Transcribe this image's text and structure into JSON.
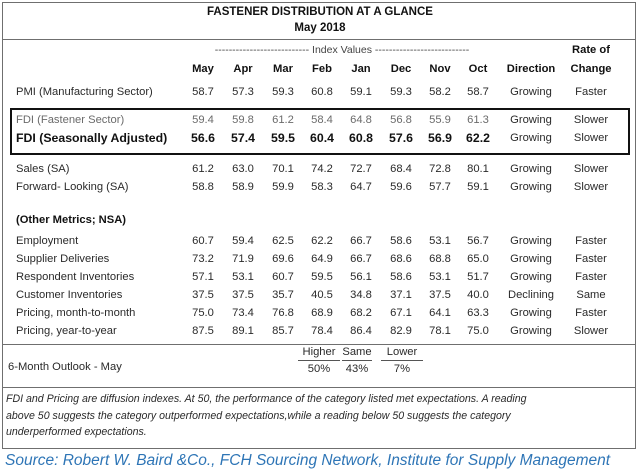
{
  "title": "FASTENER DISTRIBUTION AT A GLANCE",
  "subtitle": "May 2018",
  "index_values_label": "--------------------------- Index Values ---------------------------",
  "columns": [
    "May",
    "Apr",
    "Mar",
    "Feb",
    "Jan",
    "Dec",
    "Nov",
    "Oct"
  ],
  "direction_header": "Direction",
  "rate_header_line1": "Rate of",
  "rate_header_line2": "Change",
  "rows": {
    "pmi": {
      "label": "PMI (Manufacturing Sector)",
      "values": [
        "58.7",
        "57.3",
        "59.3",
        "60.8",
        "59.1",
        "59.3",
        "58.2",
        "58.7"
      ],
      "direction": "Growing",
      "rate": "Faster"
    },
    "fdi_fastener": {
      "label": "FDI (Fastener Sector)",
      "values": [
        "59.4",
        "59.8",
        "61.2",
        "58.4",
        "64.8",
        "56.8",
        "55.9",
        "61.3"
      ],
      "direction": "Growing",
      "rate": "Slower"
    },
    "fdi_sa": {
      "label": "FDI (Seasonally Adjusted)",
      "values": [
        "56.6",
        "57.4",
        "59.5",
        "60.4",
        "60.8",
        "57.6",
        "56.9",
        "62.2"
      ],
      "direction": "Growing",
      "rate": "Slower"
    },
    "sales": {
      "label": "Sales (SA)",
      "values": [
        "61.2",
        "63.0",
        "70.1",
        "74.2",
        "72.7",
        "68.4",
        "72.8",
        "80.1"
      ],
      "direction": "Growing",
      "rate": "Slower"
    },
    "forward": {
      "label": "Forward- Looking (SA)",
      "values": [
        "58.8",
        "58.9",
        "59.9",
        "58.3",
        "64.7",
        "59.6",
        "57.7",
        "59.1"
      ],
      "direction": "Growing",
      "rate": "Slower"
    },
    "other_label": "(Other Metrics; NSA)",
    "employment": {
      "label": "Employment",
      "values": [
        "60.7",
        "59.4",
        "62.5",
        "62.2",
        "66.7",
        "58.6",
        "53.1",
        "56.7"
      ],
      "direction": "Growing",
      "rate": "Faster"
    },
    "supplier": {
      "label": "Supplier Deliveries",
      "values": [
        "73.2",
        "71.9",
        "69.6",
        "64.9",
        "66.7",
        "68.6",
        "68.8",
        "65.0"
      ],
      "direction": "Growing",
      "rate": "Faster"
    },
    "resp_inv": {
      "label": "Respondent Inventories",
      "values": [
        "57.1",
        "53.1",
        "60.7",
        "59.5",
        "56.1",
        "58.6",
        "53.1",
        "51.7"
      ],
      "direction": "Growing",
      "rate": "Faster"
    },
    "cust_inv": {
      "label": "Customer Inventories",
      "values": [
        "37.5",
        "37.5",
        "35.7",
        "40.5",
        "34.8",
        "37.1",
        "37.5",
        "40.0"
      ],
      "direction": "Declining",
      "rate": "Same"
    },
    "pricing_mom": {
      "label": "Pricing, month-to-month",
      "values": [
        "75.0",
        "73.4",
        "76.8",
        "68.9",
        "68.2",
        "67.1",
        "64.1",
        "63.3"
      ],
      "direction": "Growing",
      "rate": "Faster"
    },
    "pricing_yoy": {
      "label": "Pricing, year-to-year",
      "values": [
        "87.5",
        "89.1",
        "85.7",
        "78.4",
        "86.4",
        "82.9",
        "78.1",
        "75.0"
      ],
      "direction": "Growing",
      "rate": "Slower"
    }
  },
  "outlook": {
    "label": "6-Month Outlook - May",
    "higher_label": "Higher",
    "higher_value": "50%",
    "same_label": "Same",
    "same_value": "43%",
    "lower_label": "Lower",
    "lower_value": "7%"
  },
  "footnote_line1": "FDI and Pricing are diffusion indexes.  At 50, the performance of the category listed met expectations. A reading",
  "footnote_line2": "above 50 suggests the category outperformed expectations,while a reading below 50 suggests the category",
  "footnote_line3": "underperformed expectations.",
  "source": "Source: Robert W. Baird &Co., FCH Sourcing Network, Institute for Supply Management"
}
